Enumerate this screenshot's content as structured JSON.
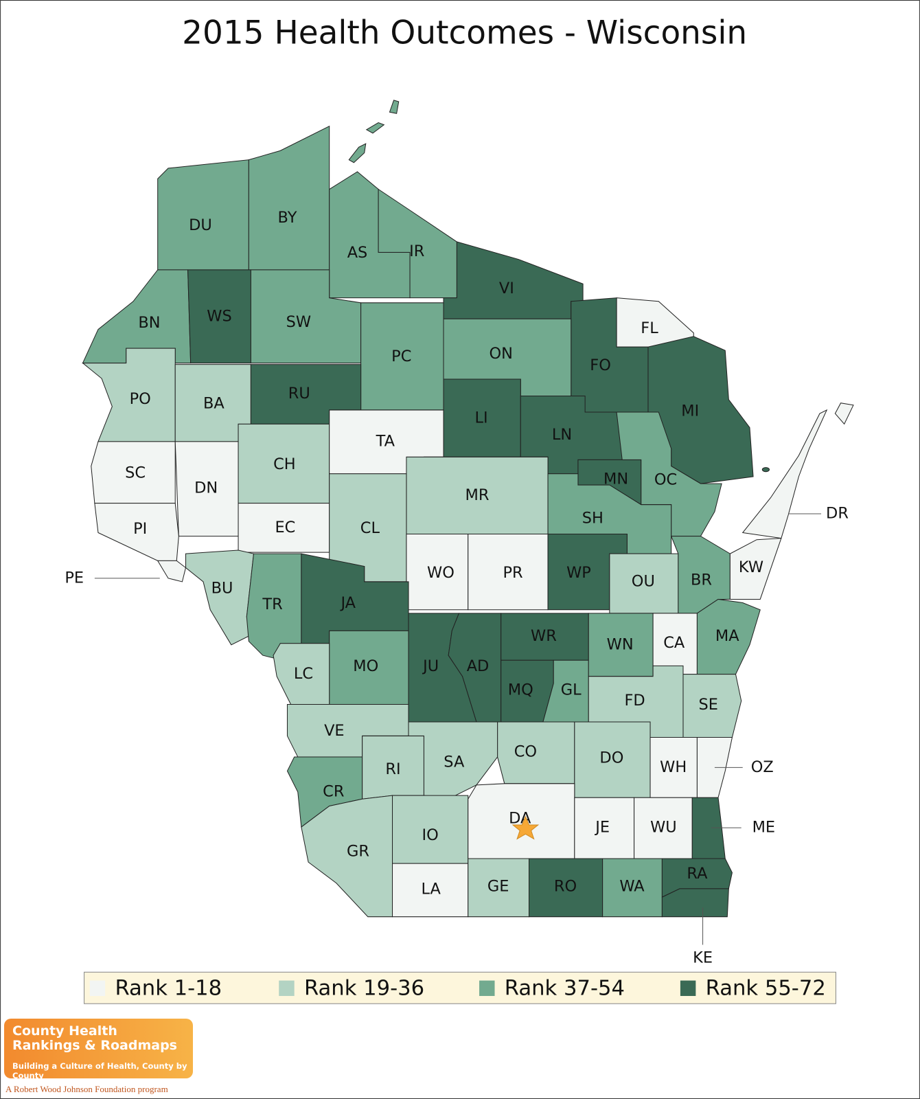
{
  "title": "2015 Health Outcomes - Wisconsin",
  "legend": [
    {
      "label": "Rank 1-18",
      "color": "#f2f5f3"
    },
    {
      "label": "Rank 19-36",
      "color": "#b3d3c3"
    },
    {
      "label": "Rank 37-54",
      "color": "#72aa8f"
    },
    {
      "label": "Rank 55-72",
      "color": "#3a6a55"
    }
  ],
  "counties": [
    {
      "label": "DU",
      "rank_group": 2
    },
    {
      "label": "BY",
      "rank_group": 2
    },
    {
      "label": "AS",
      "rank_group": 2
    },
    {
      "label": "IR",
      "rank_group": 2
    },
    {
      "label": "VI",
      "rank_group": 3
    },
    {
      "label": "FL",
      "rank_group": 0
    },
    {
      "label": "FO",
      "rank_group": 3
    },
    {
      "label": "MI",
      "rank_group": 3
    },
    {
      "label": "BN",
      "rank_group": 2
    },
    {
      "label": "WS",
      "rank_group": 3
    },
    {
      "label": "SW",
      "rank_group": 2
    },
    {
      "label": "PC",
      "rank_group": 2
    },
    {
      "label": "ON",
      "rank_group": 2
    },
    {
      "label": "PO",
      "rank_group": 1
    },
    {
      "label": "BA",
      "rank_group": 1
    },
    {
      "label": "RU",
      "rank_group": 3
    },
    {
      "label": "LI",
      "rank_group": 3
    },
    {
      "label": "LN",
      "rank_group": 3
    },
    {
      "label": "SC",
      "rank_group": 0
    },
    {
      "label": "DN",
      "rank_group": 0
    },
    {
      "label": "CH",
      "rank_group": 1
    },
    {
      "label": "TA",
      "rank_group": 0
    },
    {
      "label": "MR",
      "rank_group": 1
    },
    {
      "label": "MN",
      "rank_group": 3
    },
    {
      "label": "OC",
      "rank_group": 2
    },
    {
      "label": "SH",
      "rank_group": 2
    },
    {
      "label": "PI",
      "rank_group": 0
    },
    {
      "label": "EC",
      "rank_group": 0
    },
    {
      "label": "CL",
      "rank_group": 1
    },
    {
      "label": "WO",
      "rank_group": 0
    },
    {
      "label": "PR",
      "rank_group": 0
    },
    {
      "label": "WP",
      "rank_group": 3
    },
    {
      "label": "OU",
      "rank_group": 1
    },
    {
      "label": "BR",
      "rank_group": 2
    },
    {
      "label": "KW",
      "rank_group": 0
    },
    {
      "label": "DR",
      "rank_group": 0
    },
    {
      "label": "PE",
      "rank_group": 0
    },
    {
      "label": "BU",
      "rank_group": 1
    },
    {
      "label": "TR",
      "rank_group": 2
    },
    {
      "label": "JA",
      "rank_group": 3
    },
    {
      "label": "MO",
      "rank_group": 2
    },
    {
      "label": "LC",
      "rank_group": 1
    },
    {
      "label": "JU",
      "rank_group": 3
    },
    {
      "label": "AD",
      "rank_group": 3
    },
    {
      "label": "WR",
      "rank_group": 3
    },
    {
      "label": "MQ",
      "rank_group": 3
    },
    {
      "label": "GL",
      "rank_group": 2
    },
    {
      "label": "WN",
      "rank_group": 2
    },
    {
      "label": "CA",
      "rank_group": 0
    },
    {
      "label": "MA",
      "rank_group": 2
    },
    {
      "label": "FD",
      "rank_group": 1
    },
    {
      "label": "SE",
      "rank_group": 1
    },
    {
      "label": "VE",
      "rank_group": 1
    },
    {
      "label": "CO",
      "rank_group": 1
    },
    {
      "label": "DO",
      "rank_group": 1
    },
    {
      "label": "WH",
      "rank_group": 0
    },
    {
      "label": "OZ",
      "rank_group": 0
    },
    {
      "label": "CR",
      "rank_group": 2
    },
    {
      "label": "RI",
      "rank_group": 1
    },
    {
      "label": "SA",
      "rank_group": 1
    },
    {
      "label": "GR",
      "rank_group": 1
    },
    {
      "label": "IO",
      "rank_group": 1
    },
    {
      "label": "DA",
      "rank_group": 0
    },
    {
      "label": "JE",
      "rank_group": 0
    },
    {
      "label": "WU",
      "rank_group": 0
    },
    {
      "label": "ME",
      "rank_group": 3
    },
    {
      "label": "LA",
      "rank_group": 0
    },
    {
      "label": "GE",
      "rank_group": 1
    },
    {
      "label": "RO",
      "rank_group": 3
    },
    {
      "label": "WA",
      "rank_group": 2
    },
    {
      "label": "RA",
      "rank_group": 3
    },
    {
      "label": "KE",
      "rank_group": 3
    }
  ],
  "logo": {
    "line1": "County Health",
    "line2": "Rankings & Roadmaps",
    "tagline": "Building a Culture of Health, County by County",
    "sponsor": "A Robert Wood Johnson Foundation program"
  }
}
